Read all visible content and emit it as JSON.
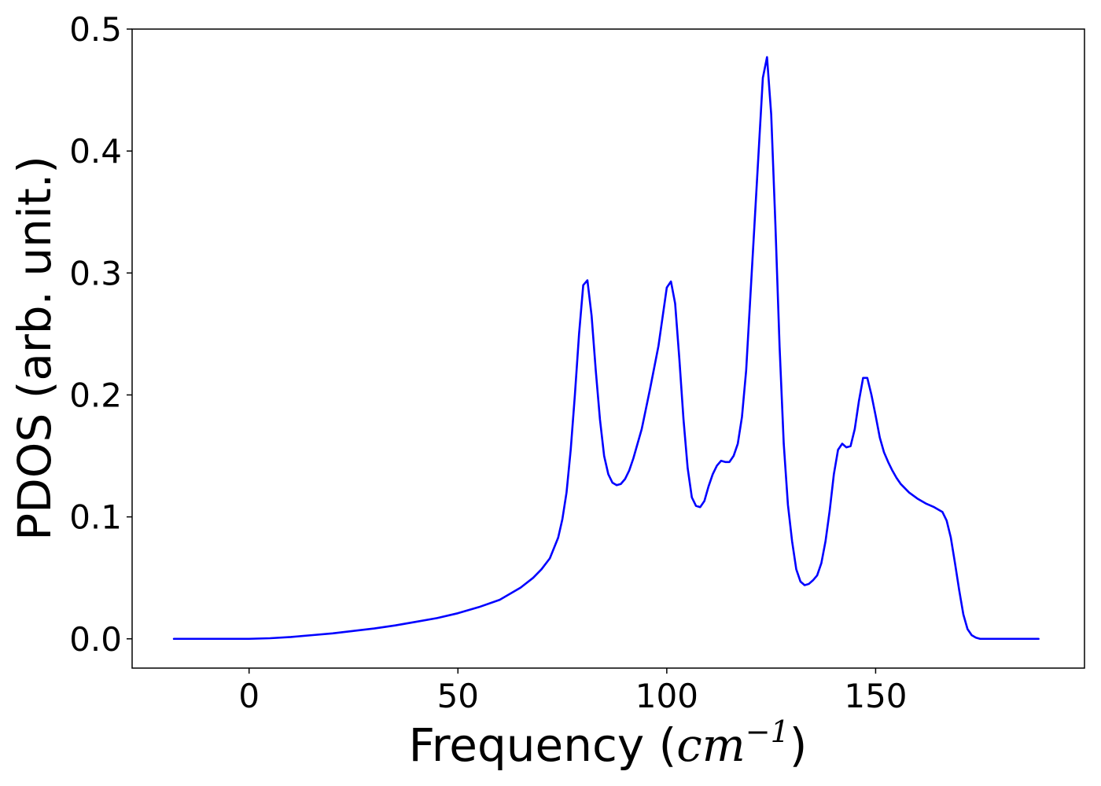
{
  "chart_data": {
    "type": "line",
    "xlabel": "Frequency (cm⁻¹)",
    "xlabel_parts": {
      "prefix": "Frequency (",
      "unit_base": "cm",
      "unit_exp": "−1",
      "suffix": ")"
    },
    "ylabel": "PDOS (arb. unit.)",
    "xlim": [
      -28,
      200
    ],
    "ylim": [
      -0.024,
      0.5
    ],
    "xticks": [
      0,
      50,
      100,
      150
    ],
    "xtick_labels": [
      "0",
      "50",
      "100",
      "150"
    ],
    "yticks": [
      0.0,
      0.1,
      0.2,
      0.3,
      0.4,
      0.5
    ],
    "ytick_labels": [
      "0.0",
      "0.1",
      "0.2",
      "0.3",
      "0.4",
      "0.5"
    ],
    "grid": false,
    "series": [
      {
        "color": "#0000ff",
        "x": [
          -18,
          0,
          5,
          10,
          15,
          20,
          25,
          30,
          35,
          40,
          45,
          50,
          55,
          60,
          65,
          68,
          70,
          72,
          74,
          75,
          76,
          77,
          78,
          79,
          80,
          81,
          82,
          83,
          84,
          85,
          86,
          87,
          88,
          89,
          90,
          91,
          92,
          94,
          96,
          98,
          100,
          101,
          102,
          103,
          104,
          105,
          106,
          107,
          108,
          109,
          110,
          111,
          112,
          113,
          114,
          115,
          116,
          117,
          118,
          119,
          120,
          121,
          122,
          123,
          124,
          125,
          126,
          127,
          128,
          129,
          130,
          131,
          132,
          133,
          134,
          135,
          136,
          137,
          138,
          139,
          140,
          141,
          142,
          143,
          144,
          145,
          146,
          147,
          148,
          149,
          150,
          151,
          152,
          153,
          154,
          155,
          156,
          158,
          160,
          162,
          164,
          166,
          167,
          168,
          169,
          170,
          171,
          172,
          173,
          174,
          175,
          176,
          178,
          180,
          189
        ],
        "y": [
          0.0,
          0.0,
          0.0005,
          0.0015,
          0.003,
          0.0045,
          0.0065,
          0.0085,
          0.011,
          0.014,
          0.017,
          0.021,
          0.026,
          0.032,
          0.042,
          0.05,
          0.057,
          0.066,
          0.083,
          0.098,
          0.12,
          0.155,
          0.2,
          0.25,
          0.29,
          0.294,
          0.265,
          0.22,
          0.18,
          0.15,
          0.135,
          0.128,
          0.126,
          0.127,
          0.131,
          0.138,
          0.148,
          0.172,
          0.205,
          0.24,
          0.288,
          0.293,
          0.275,
          0.23,
          0.18,
          0.14,
          0.116,
          0.109,
          0.108,
          0.113,
          0.125,
          0.135,
          0.142,
          0.146,
          0.145,
          0.145,
          0.15,
          0.16,
          0.182,
          0.22,
          0.28,
          0.34,
          0.4,
          0.46,
          0.477,
          0.43,
          0.34,
          0.24,
          0.16,
          0.11,
          0.08,
          0.057,
          0.047,
          0.044,
          0.045,
          0.048,
          0.052,
          0.062,
          0.08,
          0.105,
          0.135,
          0.155,
          0.16,
          0.157,
          0.158,
          0.172,
          0.195,
          0.214,
          0.214,
          0.2,
          0.183,
          0.165,
          0.153,
          0.145,
          0.138,
          0.132,
          0.127,
          0.12,
          0.115,
          0.111,
          0.108,
          0.104,
          0.097,
          0.083,
          0.062,
          0.04,
          0.02,
          0.008,
          0.003,
          0.001,
          0.0,
          0.0,
          0.0,
          0.0,
          0.0
        ]
      }
    ]
  }
}
